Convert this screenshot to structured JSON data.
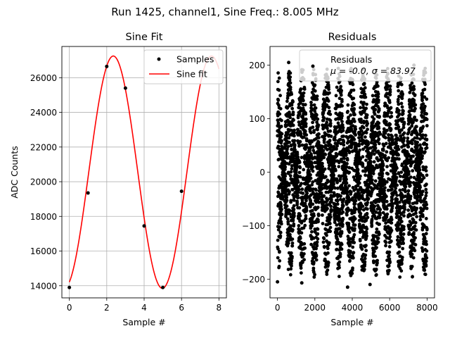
{
  "figure": {
    "suptitle": "Run 1425, channel1, Sine Freq.: 8.005 MHz"
  },
  "chart_data": [
    {
      "type": "line",
      "title": "Sine Fit",
      "xlabel": "Sample #",
      "ylabel": "ADC Counts",
      "xlim": [
        -0.4,
        8.4
      ],
      "ylim": [
        13300,
        27800
      ],
      "xticks": [
        0,
        2,
        4,
        6,
        8
      ],
      "yticks": [
        14000,
        16000,
        18000,
        20000,
        22000,
        24000,
        26000
      ],
      "grid": true,
      "legend_position": "top-right",
      "sine_fit": {
        "offset": 20550,
        "amplitude": 6700,
        "period": 5.25,
        "peak_x": 2.35,
        "x_range": [
          0,
          8
        ]
      },
      "series": [
        {
          "name": "Samples",
          "style": "points",
          "color": "#000000",
          "x": [
            0,
            1,
            2,
            3,
            4,
            5,
            6
          ],
          "y": [
            13900,
            19350,
            26650,
            25400,
            17450,
            13900,
            19450
          ]
        },
        {
          "name": "Sine fit",
          "style": "line",
          "color": "#ff0000"
        }
      ]
    },
    {
      "type": "scatter",
      "title": "Residuals",
      "xlabel": "Sample #",
      "ylabel": "",
      "xlim": [
        -400,
        8400
      ],
      "ylim": [
        -235,
        235
      ],
      "xticks": [
        0,
        2000,
        4000,
        6000,
        8000
      ],
      "yticks": [
        -200,
        -100,
        0,
        100,
        200
      ],
      "grid": false,
      "legend_position": "top-right",
      "series": [
        {
          "name": "Residuals",
          "style": "points",
          "color": "#000000",
          "stats_text": "μ = -0.0, σ = 83.97",
          "sample_count": 8000,
          "band_period": 656,
          "amplitude": 205,
          "outliers": [
            [
              0,
              -205
            ],
            [
              600,
              205
            ],
            [
              1300,
              -207
            ],
            [
              3750,
              -215
            ],
            [
              4950,
              -210
            ],
            [
              7300,
              200
            ]
          ]
        }
      ]
    }
  ]
}
